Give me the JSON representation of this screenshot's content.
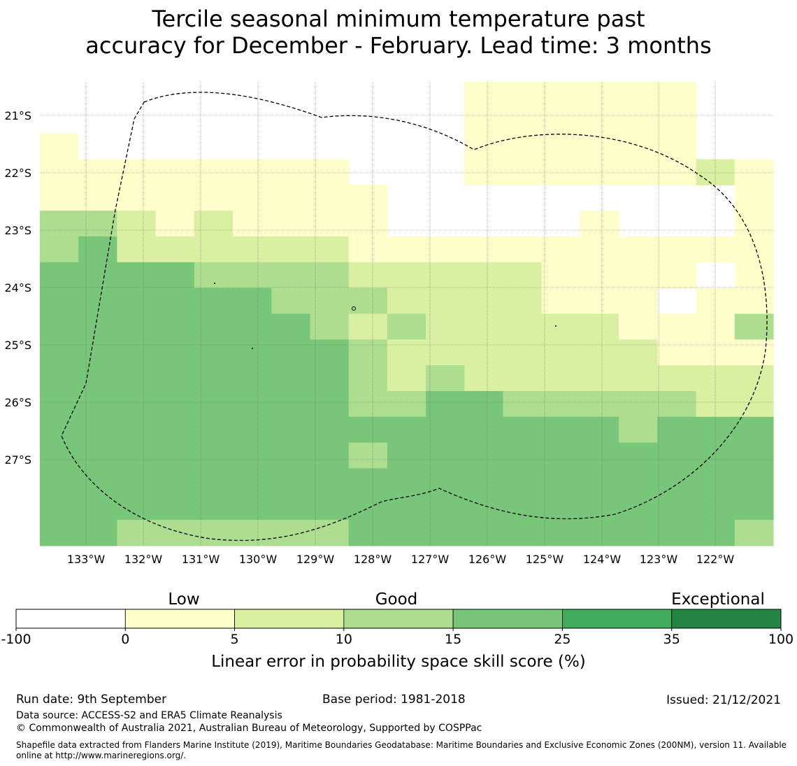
{
  "title": {
    "line1": "Tercile seasonal minimum temperature past",
    "line2": "accuracy for December - February. Lead time: 3 months"
  },
  "axes": {
    "lat_labels": [
      "21°S",
      "22°S",
      "23°S",
      "24°S",
      "25°S",
      "26°S",
      "27°S"
    ],
    "lon_labels": [
      "133°W",
      "132°W",
      "131°W",
      "130°W",
      "129°W",
      "128°W",
      "127°W",
      "126°W",
      "125°W",
      "124°W",
      "123°W",
      "122°W"
    ]
  },
  "colorbar": {
    "title": "Linear error in probability space skill score (%)",
    "categories": [
      "Low",
      "Good",
      "Exceptional"
    ],
    "ticks": [
      "-100",
      "0",
      "5",
      "10",
      "15",
      "25",
      "35",
      "100"
    ],
    "colors": [
      "#ffffff",
      "#ffffcc",
      "#d9f0a3",
      "#addd8e",
      "#78c679",
      "#41ab5d",
      "#238443"
    ]
  },
  "footer": {
    "run_date": "Run date: 9th September",
    "base_period": "Base period: 1981-2018",
    "issued": "Issued: 21/12/2021",
    "data_source": "Data source: ACCESS-S2 and ERA5 Climate Reanalysis",
    "copyright": "© Commonwealth of Australia 2021, Australian Bureau of Meteorology, Supported by COSPPac",
    "shapefile": "Shapefile data extracted from Flanders Marine Institute (2019), Maritime Boundaries Geodatabase: Maritime Boundaries and Exclusive Economic Zones (200NM), version 11. Available online at http://www.marineregions.org/."
  },
  "grid_classes": [
    "0000000000011111100",
    "0000000000011111100",
    "1000000000011111100",
    "1111111100011111121",
    "1111111110000000001",
    "3321211110000010001",
    "3422222211111111111",
    "4444333322222111101",
    "4444443332222111011",
    "4444444323222221113",
    "4444444432222222111",
    "4444444432322222222",
    "4444444433443333322",
    "4444444444444443444",
    "4444444434444444444",
    "4444444444444444444",
    "4444444444444444444",
    "4433333344444444443"
  ]
}
